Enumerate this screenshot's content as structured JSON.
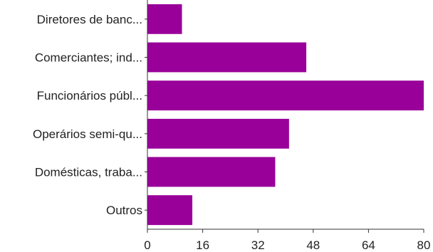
{
  "chart_data": {
    "type": "bar",
    "orientation": "horizontal",
    "title": "",
    "xlabel": "",
    "ylabel": "",
    "categories": [
      "Diretores de banc...",
      "Comerciantes; ind...",
      "Funcionários públ...",
      "Operários semi-qu...",
      "Domésticas, traba...",
      "Outros"
    ],
    "values": [
      10,
      46,
      80,
      41,
      37,
      13
    ],
    "xlim": [
      0,
      80
    ],
    "xticks": [
      "0",
      "16",
      "32",
      "48",
      "64",
      "80"
    ],
    "grid": false,
    "legend": "none",
    "bar_color": "#990099",
    "axis_color": "#333333"
  }
}
